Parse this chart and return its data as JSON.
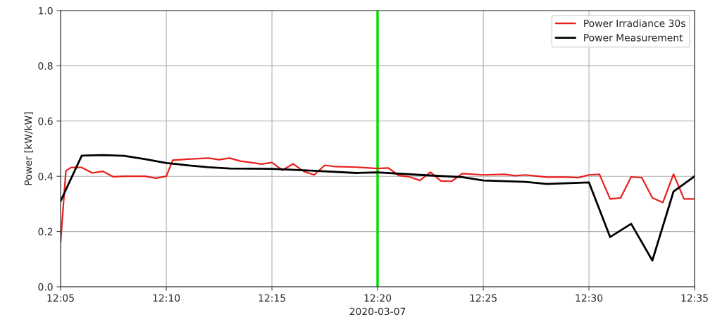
{
  "chart_data": {
    "type": "line",
    "xlabel": "2020-03-07",
    "ylabel": "Power [kW/kW]",
    "xlim": [
      12.0833,
      12.5833
    ],
    "ylim": [
      0.0,
      1.0
    ],
    "xticks": [
      {
        "value": 12.0833,
        "label": "12:05"
      },
      {
        "value": 12.1667,
        "label": "12:10"
      },
      {
        "value": 12.25,
        "label": "12:15"
      },
      {
        "value": 12.3333,
        "label": "12:20"
      },
      {
        "value": 12.4167,
        "label": "12:25"
      },
      {
        "value": 12.5,
        "label": "12:30"
      },
      {
        "value": 12.5833,
        "label": "12:35"
      }
    ],
    "yticks": [
      {
        "value": 0.0,
        "label": "0.0"
      },
      0.2,
      0.4,
      0.6,
      0.8,
      {
        "value": 1.0,
        "label": "1.0"
      }
    ],
    "grid": true,
    "legend": "top right",
    "ref_lines": [
      {
        "axis": "x",
        "value": 12.3333,
        "color": "#00e000"
      }
    ],
    "series": [
      {
        "name": "Power Irradiance 30s",
        "color": "#e8201c",
        "x": [
          12.0833,
          12.0875,
          12.0917,
          12.1,
          12.1083,
          12.1167,
          12.125,
          12.1333,
          12.15,
          12.1583,
          12.1667,
          12.1717,
          12.1833,
          12.2,
          12.2083,
          12.2167,
          12.225,
          12.2333,
          12.2417,
          12.25,
          12.2583,
          12.2667,
          12.275,
          12.2833,
          12.2917,
          12.3,
          12.3167,
          12.3333,
          12.3417,
          12.35,
          12.3583,
          12.3667,
          12.375,
          12.3833,
          12.3917,
          12.4,
          12.4167,
          12.4333,
          12.4417,
          12.45,
          12.4667,
          12.4833,
          12.4917,
          12.5,
          12.5083,
          12.5167,
          12.525,
          12.5333,
          12.5417,
          12.55,
          12.5583,
          12.5667,
          12.575,
          12.5833
        ],
        "values": [
          0.16,
          0.42,
          0.432,
          0.432,
          0.412,
          0.418,
          0.398,
          0.4,
          0.4,
          0.393,
          0.4,
          0.458,
          0.462,
          0.466,
          0.46,
          0.466,
          0.455,
          0.45,
          0.444,
          0.45,
          0.422,
          0.445,
          0.418,
          0.405,
          0.44,
          0.435,
          0.433,
          0.428,
          0.43,
          0.403,
          0.398,
          0.385,
          0.415,
          0.383,
          0.382,
          0.41,
          0.405,
          0.407,
          0.402,
          0.405,
          0.397,
          0.397,
          0.395,
          0.405,
          0.407,
          0.318,
          0.322,
          0.398,
          0.395,
          0.322,
          0.305,
          0.408,
          0.318,
          0.318
        ]
      },
      {
        "name": "Power Measurement",
        "color": "#000000",
        "x": [
          12.0833,
          12.1,
          12.1167,
          12.1333,
          12.15,
          12.1667,
          12.1833,
          12.2,
          12.2167,
          12.25,
          12.2833,
          12.3167,
          12.3333,
          12.3667,
          12.4,
          12.4167,
          12.45,
          12.4667,
          12.5,
          12.5167,
          12.5333,
          12.55,
          12.5667,
          12.5833
        ],
        "values": [
          0.31,
          0.475,
          0.477,
          0.474,
          0.462,
          0.448,
          0.44,
          0.433,
          0.428,
          0.427,
          0.42,
          0.412,
          0.414,
          0.405,
          0.397,
          0.385,
          0.38,
          0.372,
          0.378,
          0.18,
          0.228,
          0.095,
          0.345,
          0.4
        ]
      }
    ]
  }
}
